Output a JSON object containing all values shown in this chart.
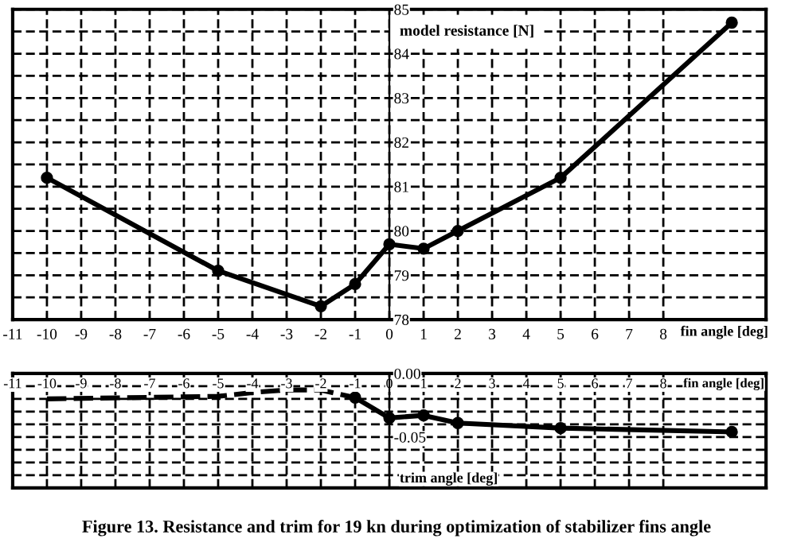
{
  "chart_data": [
    {
      "type": "line",
      "xlabel": "fin angle [deg]",
      "ylabel": "model resistance [N]",
      "series": [
        {
          "color": "#000000",
          "x": [
            -10,
            -5,
            -2,
            -1,
            0,
            1,
            2,
            5,
            10
          ],
          "values": [
            81.2,
            79.1,
            78.3,
            78.8,
            79.7,
            79.6,
            80.0,
            81.2,
            84.7
          ],
          "marker": "circle",
          "line_style": "solid"
        }
      ],
      "xlim": [
        -11,
        11
      ],
      "xticks": [
        -11,
        -10,
        -9,
        -8,
        -7,
        -6,
        -5,
        -4,
        -3,
        -2,
        -1,
        0,
        1,
        2,
        3,
        4,
        5,
        6,
        7,
        8
      ],
      "ylim": [
        78,
        85
      ],
      "yticks": [
        78,
        {
          "value": 78.5,
          "label": null
        },
        79,
        {
          "value": 79.5,
          "label": null
        },
        80,
        {
          "value": 80.5,
          "label": null
        },
        81,
        {
          "value": 81.5,
          "label": null
        },
        82,
        {
          "value": 82.5,
          "label": null
        },
        83,
        {
          "value": 83.5,
          "label": null
        },
        84,
        {
          "value": 84.5,
          "label": null
        },
        85
      ],
      "grid": true
    },
    {
      "type": "line",
      "xlabel": "fin angle [deg]",
      "ylabel": "trim angle [deg]",
      "series": [
        {
          "color": "#000000",
          "x": [
            -10,
            -5,
            -4,
            -3,
            -2,
            -1
          ],
          "values": [
            -0.02,
            -0.018,
            -0.015,
            -0.013,
            -0.013,
            -0.019
          ],
          "marker": "none",
          "line_style": "dashed"
        },
        {
          "color": "#000000",
          "x": [
            -1,
            0,
            1,
            2,
            5,
            10
          ],
          "values": [
            -0.019,
            -0.035,
            -0.033,
            -0.039,
            -0.043,
            -0.046
          ],
          "marker": "circle",
          "line_style": "solid"
        }
      ],
      "xlim": [
        -11,
        11
      ],
      "xticks": [
        -11,
        -10,
        -9,
        -8,
        -7,
        -6,
        -5,
        -4,
        -3,
        -2,
        -1,
        0,
        1,
        2,
        3,
        4,
        5,
        6,
        7,
        8
      ],
      "ylim": [
        -0.09,
        0
      ],
      "yticks": [
        {
          "value": 0,
          "label": "0.00"
        },
        {
          "value": -0.01,
          "label": null
        },
        {
          "value": -0.02,
          "label": null
        },
        {
          "value": -0.03,
          "label": null
        },
        {
          "value": -0.04,
          "label": null
        },
        {
          "value": -0.05,
          "label": "-0.05"
        },
        {
          "value": -0.06,
          "label": null
        },
        {
          "value": -0.07,
          "label": null
        },
        {
          "value": -0.08,
          "label": null
        }
      ],
      "grid": true,
      "annotations": [
        "Figure 13. Resistance and trim for 19 kn during optimization of stabilizer fins angle"
      ]
    }
  ]
}
